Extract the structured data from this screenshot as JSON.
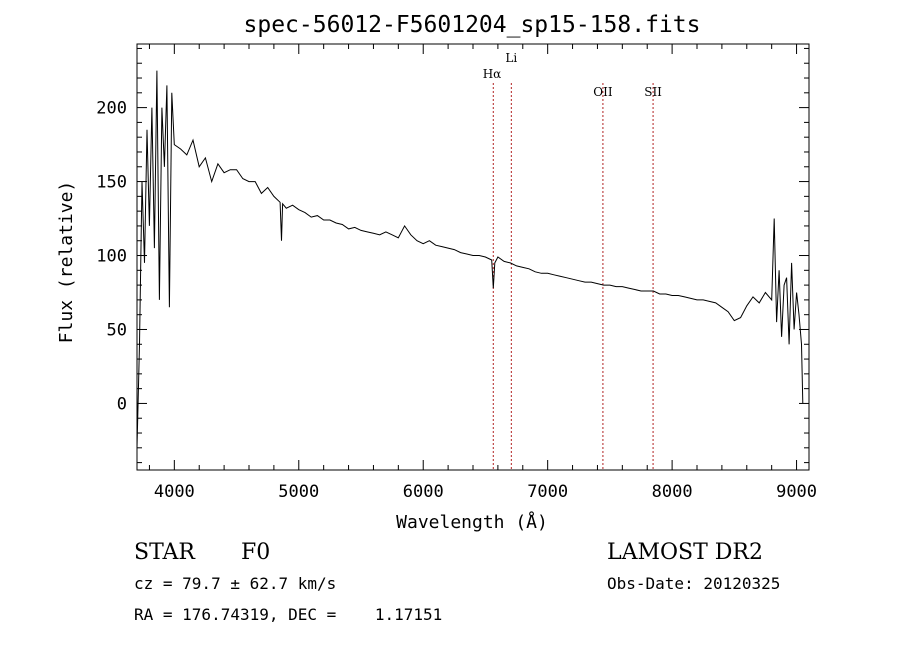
{
  "chart_data": {
    "type": "line",
    "title": "spec-56012-F5601204_sp15-158.fits",
    "xlabel": "Wavelength (Å)",
    "ylabel": "Flux (relative)",
    "xlim": [
      3700,
      9100
    ],
    "ylim": [
      -45,
      243
    ],
    "xticks": [
      4000,
      5000,
      6000,
      7000,
      8000,
      9000
    ],
    "yticks": [
      0,
      50,
      100,
      150,
      200
    ],
    "grid": false,
    "legend": "none",
    "line_color": "#000000",
    "marker_color": "#b22222",
    "reference_lines": [
      {
        "label": "Hα",
        "x": 6563
      },
      {
        "label": "Li",
        "x": 6708
      },
      {
        "label": "OII",
        "x": 7444
      },
      {
        "label": "SII",
        "x": 7847
      }
    ],
    "series": [
      {
        "x": [
          3700,
          3720,
          3740,
          3760,
          3780,
          3800,
          3820,
          3840,
          3860,
          3880,
          3900,
          3920,
          3940,
          3960,
          3980,
          4000,
          4050,
          4100,
          4150,
          4200,
          4250,
          4300,
          4350,
          4400,
          4450,
          4500,
          4550,
          4600,
          4650,
          4700,
          4750,
          4800,
          4850,
          4861,
          4870,
          4900,
          4950,
          5000,
          5050,
          5100,
          5150,
          5200,
          5250,
          5300,
          5350,
          5400,
          5450,
          5500,
          5550,
          5600,
          5650,
          5700,
          5750,
          5800,
          5850,
          5900,
          5950,
          6000,
          6050,
          6100,
          6150,
          6200,
          6250,
          6300,
          6350,
          6400,
          6450,
          6500,
          6550,
          6563,
          6575,
          6600,
          6650,
          6700,
          6750,
          6800,
          6850,
          6900,
          6950,
          7000,
          7050,
          7100,
          7150,
          7200,
          7250,
          7300,
          7350,
          7400,
          7450,
          7500,
          7550,
          7600,
          7650,
          7700,
          7750,
          7800,
          7850,
          7900,
          7950,
          8000,
          8050,
          8100,
          8150,
          8200,
          8250,
          8300,
          8350,
          8400,
          8450,
          8500,
          8550,
          8600,
          8650,
          8700,
          8750,
          8800,
          8820,
          8840,
          8860,
          8880,
          8900,
          8920,
          8940,
          8960,
          8980,
          9000,
          9020,
          9040,
          9050
        ],
        "y": [
          -30,
          40,
          150,
          95,
          185,
          120,
          200,
          105,
          225,
          70,
          200,
          160,
          215,
          65,
          210,
          175,
          172,
          168,
          178,
          160,
          166,
          150,
          162,
          156,
          158,
          158,
          152,
          150,
          150,
          142,
          146,
          140,
          136,
          110,
          135,
          132,
          134,
          131,
          129,
          126,
          127,
          124,
          124,
          122,
          121,
          118,
          119,
          117,
          116,
          115,
          114,
          116,
          114,
          112,
          120,
          114,
          110,
          108,
          110,
          107,
          106,
          105,
          104,
          102,
          101,
          100,
          100,
          99,
          97,
          78,
          95,
          99,
          96,
          95,
          93,
          92,
          91,
          89,
          88,
          88,
          87,
          86,
          85,
          84,
          83,
          82,
          82,
          81,
          80,
          80,
          79,
          79,
          78,
          77,
          76,
          76,
          76,
          74,
          74,
          73,
          73,
          72,
          71,
          70,
          70,
          69,
          68,
          65,
          62,
          56,
          58,
          66,
          72,
          68,
          75,
          70,
          125,
          55,
          90,
          45,
          80,
          85,
          40,
          95,
          50,
          75,
          60,
          40,
          0
        ]
      }
    ]
  },
  "info": {
    "object_class": "STAR",
    "subclass": "F0",
    "survey": "LAMOST DR2",
    "redshift_text": "cz = 79.7 ± 62.7 km/s",
    "obs_date": "Obs-Date: 20120325",
    "coords": "RA = 176.74319, DEC =    1.17151"
  }
}
